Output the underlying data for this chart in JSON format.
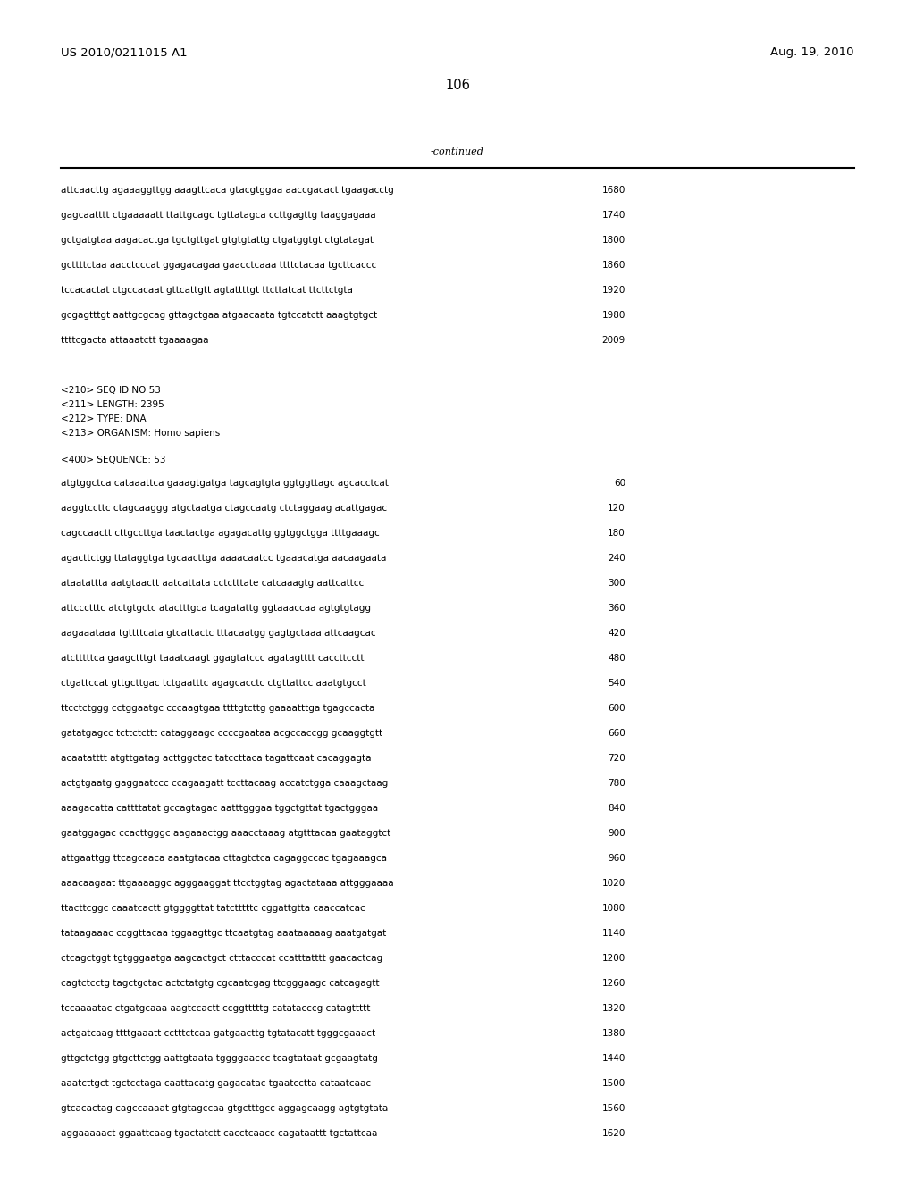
{
  "header_left": "US 2010/0211015 A1",
  "header_right": "Aug. 19, 2010",
  "page_number": "106",
  "continued_label": "-continued",
  "background_color": "#ffffff",
  "text_color": "#000000",
  "font_size_header": 9.5,
  "font_size_body": 7.5,
  "font_size_page": 10.5,
  "continued_section": [
    {
      "seq": "attcaacttg agaaaggttgg aaagttcaca gtacgtggaa aaccgacact tgaagacctg",
      "num": "1680"
    },
    {
      "seq": "gagcaatttt ctgaaaaatt ttattgcagc tgttatagca ccttgagttg taaggagaaa",
      "num": "1740"
    },
    {
      "seq": "gctgatgtaa aagacactga tgctgttgat gtgtgtattg ctgatggtgt ctgtatagat",
      "num": "1800"
    },
    {
      "seq": "gcttttctaa aacctcccat ggagacagaa gaacctcaaa ttttctacaa tgcttcaccc",
      "num": "1860"
    },
    {
      "seq": "tccacactat ctgccacaat gttcattgtt agtattttgt ttcttatcat ttcttctgta",
      "num": "1920"
    },
    {
      "seq": "gcgagtttgt aattgcgcag gttagctgaa atgaacaata tgtccatctt aaagtgtgct",
      "num": "1980"
    },
    {
      "seq": "ttttcgacta attaaatctt tgaaaagaa",
      "num": "2009"
    }
  ],
  "metadata": [
    "<210> SEQ ID NO 53",
    "<211> LENGTH: 2395",
    "<212> TYPE: DNA",
    "<213> ORGANISM: Homo sapiens"
  ],
  "sequence_label": "<400> SEQUENCE: 53",
  "sequence_lines": [
    {
      "seq": "atgtggctca cataaattca gaaagtgatga tagcagtgta ggtggttagc agcacctcat",
      "num": "60"
    },
    {
      "seq": "aaggtccttc ctagcaaggg atgctaatga ctagccaatg ctctaggaag acattgagac",
      "num": "120"
    },
    {
      "seq": "cagccaactt cttgccttga taactactga agagacattg ggtggctgga ttttgaaagc",
      "num": "180"
    },
    {
      "seq": "agacttctgg ttataggtga tgcaacttga aaaacaatcc tgaaacatga aacaagaata",
      "num": "240"
    },
    {
      "seq": "ataatattta aatgtaactt aatcattata cctctttate catcaaagtg aattcattcc",
      "num": "300"
    },
    {
      "seq": "attccctttc atctgtgctc atactttgca tcagatattg ggtaaaccaa agtgtgtagg",
      "num": "360"
    },
    {
      "seq": "aagaaataaa tgttttcata gtcattactc tttacaatgg gagtgctaaa attcaagcac",
      "num": "420"
    },
    {
      "seq": "atctttttca gaagctttgt taaatcaagt ggagtatccc agatagtttt caccttcctt",
      "num": "480"
    },
    {
      "seq": "ctgattccat gttgcttgac tctgaatttc agagcacctc ctgttattcc aaatgtgcct",
      "num": "540"
    },
    {
      "seq": "ttcctctggg cctggaatgc cccaagtgaa ttttgtcttg gaaaatttga tgagccacta",
      "num": "600"
    },
    {
      "seq": "gatatgagcc tcttctcttt cataggaagc ccccgaataa acgccaccgg gcaaggtgtt",
      "num": "660"
    },
    {
      "seq": "acaatatttt atgttgatag acttggctac tatccttaca tagattcaat cacaggagta",
      "num": "720"
    },
    {
      "seq": "actgtgaatg gaggaatccc ccagaagatt tccttacaag accatctgga caaagctaag",
      "num": "780"
    },
    {
      "seq": "aaagacatta cattttatat gccagtagac aatttgggaa tggctgttat tgactgggaa",
      "num": "840"
    },
    {
      "seq": "gaatggagac ccacttgggc aagaaactgg aaacctaaag atgtttacaa gaataggtct",
      "num": "900"
    },
    {
      "seq": "attgaattgg ttcagcaaca aaatgtacaa cttagtctca cagaggccac tgagaaagca",
      "num": "960"
    },
    {
      "seq": "aaacaagaat ttgaaaaggc agggaaggat ttcctggtag agactataaa attgggaaaa",
      "num": "1020"
    },
    {
      "seq": "ttacttcggc caaatcactt gtggggttat tatctttttc cggattgtta caaccatcac",
      "num": "1080"
    },
    {
      "seq": "tataagaaac ccggttacaa tggaagttgc ttcaatgtag aaataaaaag aaatgatgat",
      "num": "1140"
    },
    {
      "seq": "ctcagctggt tgtgggaatga aagcactgct ctttacccat ccatttatttt gaacactcag",
      "num": "1200"
    },
    {
      "seq": "cagtctcctg tagctgctac actctatgtg cgcaatcgag ttcgggaagc catcagagtt",
      "num": "1260"
    },
    {
      "seq": "tccaaaatac ctgatgcaaa aagtccactt ccggtttttg catatacccg catagttttt",
      "num": "1320"
    },
    {
      "seq": "actgatcaag ttttgaaatt cctttctcaa gatgaacttg tgtatacatt tgggcgaaact",
      "num": "1380"
    },
    {
      "seq": "gttgctctgg gtgcttctgg aattgtaata tggggaaccc tcagtataat gcgaagtatg",
      "num": "1440"
    },
    {
      "seq": "aaatcttgct tgctcctaga caattacatg gagacatac tgaatcctta cataatcaac",
      "num": "1500"
    },
    {
      "seq": "gtcacactag cagccaaaat gtgtagccaa gtgctttgcc aggagcaagg agtgtgtata",
      "num": "1560"
    },
    {
      "seq": "aggaaaaact ggaattcaag tgactatctt cacctcaacc cagataattt tgctattcaa",
      "num": "1620"
    }
  ]
}
